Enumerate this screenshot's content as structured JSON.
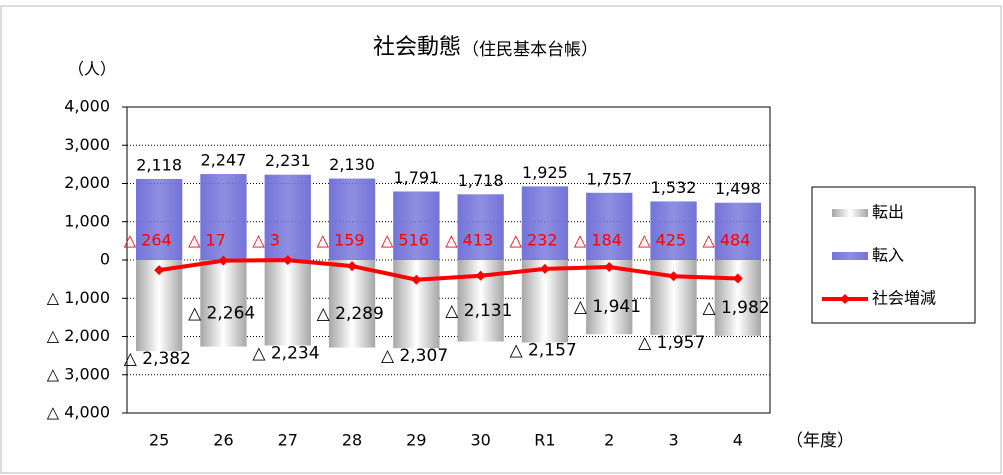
{
  "chart_data": {
    "type": "bar",
    "title": "社会動態",
    "subtitle": "（住民基本台帳）",
    "y_label": "（人）",
    "x_label": "（年度）",
    "categories": [
      "25",
      "26",
      "27",
      "28",
      "29",
      "30",
      "R1",
      "2",
      "3",
      "4"
    ],
    "series": [
      {
        "name": "転出",
        "color": "#a6a6a6",
        "type": "bar",
        "values": [
          -2382,
          -2264,
          -2234,
          -2289,
          -2307,
          -2131,
          -2157,
          -1941,
          -1957,
          -1982
        ],
        "value_labels": [
          "△ 2,382",
          "△ 2,264",
          "△ 2,234",
          "△ 2,289",
          "△ 2,307",
          "△ 2,131",
          "△ 2,157",
          "△ 1,941",
          "△ 1,957",
          "△ 1,982"
        ]
      },
      {
        "name": "転入",
        "color": "#7373d9",
        "type": "bar",
        "values": [
          2118,
          2247,
          2231,
          2130,
          1791,
          1718,
          1925,
          1757,
          1532,
          1498
        ],
        "value_labels": [
          "2,118",
          "2,247",
          "2,231",
          "2,130",
          "1,791",
          "1,718",
          "1,925",
          "1,757",
          "1,532",
          "1,498"
        ]
      },
      {
        "name": "社会増減",
        "color": "#ff0000",
        "type": "line",
        "values": [
          -264,
          -17,
          -3,
          -159,
          -516,
          -413,
          -232,
          -184,
          -425,
          -484
        ],
        "value_labels": [
          "△ 264",
          "△ 17",
          "△ 3",
          "△ 159",
          "△ 516",
          "△ 413",
          "△ 232",
          "△ 184",
          "△ 425",
          "△ 484"
        ]
      }
    ],
    "ylim": [
      -4000,
      4000
    ],
    "yticks": [
      {
        "value": 4000,
        "label": "4,000"
      },
      {
        "value": 3000,
        "label": "3,000"
      },
      {
        "value": 2000,
        "label": "2,000"
      },
      {
        "value": 1000,
        "label": "1,000"
      },
      0,
      {
        "value": -1000,
        "label": "△ 1,000"
      },
      {
        "value": -2000,
        "label": "△ 2,000"
      },
      {
        "value": -3000,
        "label": "△ 3,000"
      },
      {
        "value": -4000,
        "label": "△ 4,000"
      }
    ],
    "grid": true,
    "legend": "right"
  }
}
